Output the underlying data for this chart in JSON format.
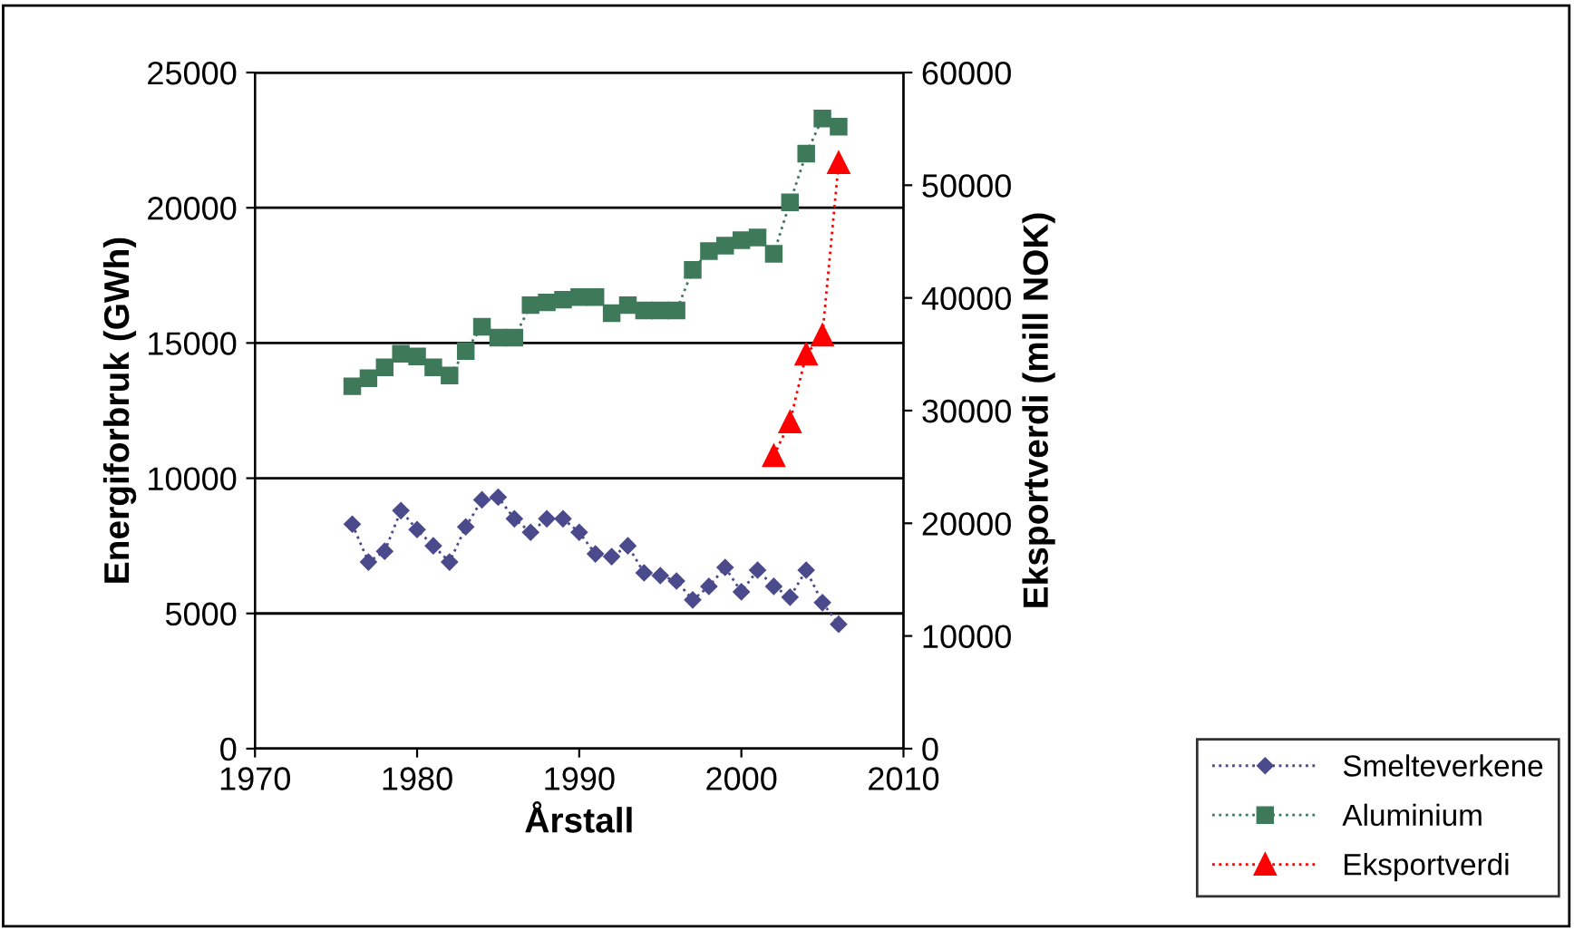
{
  "chart_data": {
    "type": "line",
    "xlabel": "Årstall",
    "ylabel": "Energiforbruk (GWh)",
    "y2label": "Eksportverdi (mill NOK)",
    "x": [
      1976,
      1977,
      1978,
      1979,
      1980,
      1981,
      1982,
      1983,
      1984,
      1985,
      1986,
      1987,
      1988,
      1989,
      1990,
      1991,
      1992,
      1993,
      1994,
      1995,
      1996,
      1997,
      1998,
      1999,
      2000,
      2001,
      2002,
      2003,
      2004,
      2005,
      2006
    ],
    "xlim": [
      1970,
      2010
    ],
    "xticks": [
      1970,
      1980,
      1990,
      2000,
      2010
    ],
    "ylim": [
      0,
      25000
    ],
    "yticks": [
      0,
      5000,
      10000,
      15000,
      20000,
      25000
    ],
    "y2lim": [
      0,
      60000
    ],
    "y2ticks": [
      0,
      10000,
      20000,
      30000,
      40000,
      50000,
      60000
    ],
    "grid": "y",
    "legend": "bottom right",
    "line_style": "dotted",
    "series": [
      {
        "name": "Smelteverkene",
        "color": "#4b4a8c",
        "marker": "diamond",
        "values": [
          8300,
          6900,
          7300,
          8800,
          8100,
          7500,
          6900,
          8200,
          9200,
          9300,
          8500,
          8000,
          8500,
          8500,
          8000,
          7200,
          7100,
          7500,
          6500,
          6400,
          6200,
          5500,
          6000,
          6700,
          5800,
          6600,
          6000,
          5600,
          6600,
          5400,
          4600
        ]
      },
      {
        "name": "Aluminium",
        "color": "#3e7a5a",
        "marker": "square",
        "values": [
          13400,
          13700,
          14100,
          14600,
          14500,
          14100,
          13800,
          14700,
          15600,
          15200,
          15200,
          16400,
          16500,
          16600,
          16700,
          16700,
          16100,
          16400,
          16200,
          16200,
          16200,
          17700,
          18400,
          18600,
          18800,
          18900,
          18300,
          20200,
          22000,
          23300,
          23000
        ]
      },
      {
        "name": "Eksportverdi",
        "color": "#ff0000",
        "marker": "triangle",
        "axis": "y2",
        "x": [
          2002,
          2003,
          2004,
          2005,
          2006
        ],
        "values": [
          26000,
          29000,
          35000,
          36700,
          52000
        ]
      }
    ]
  }
}
